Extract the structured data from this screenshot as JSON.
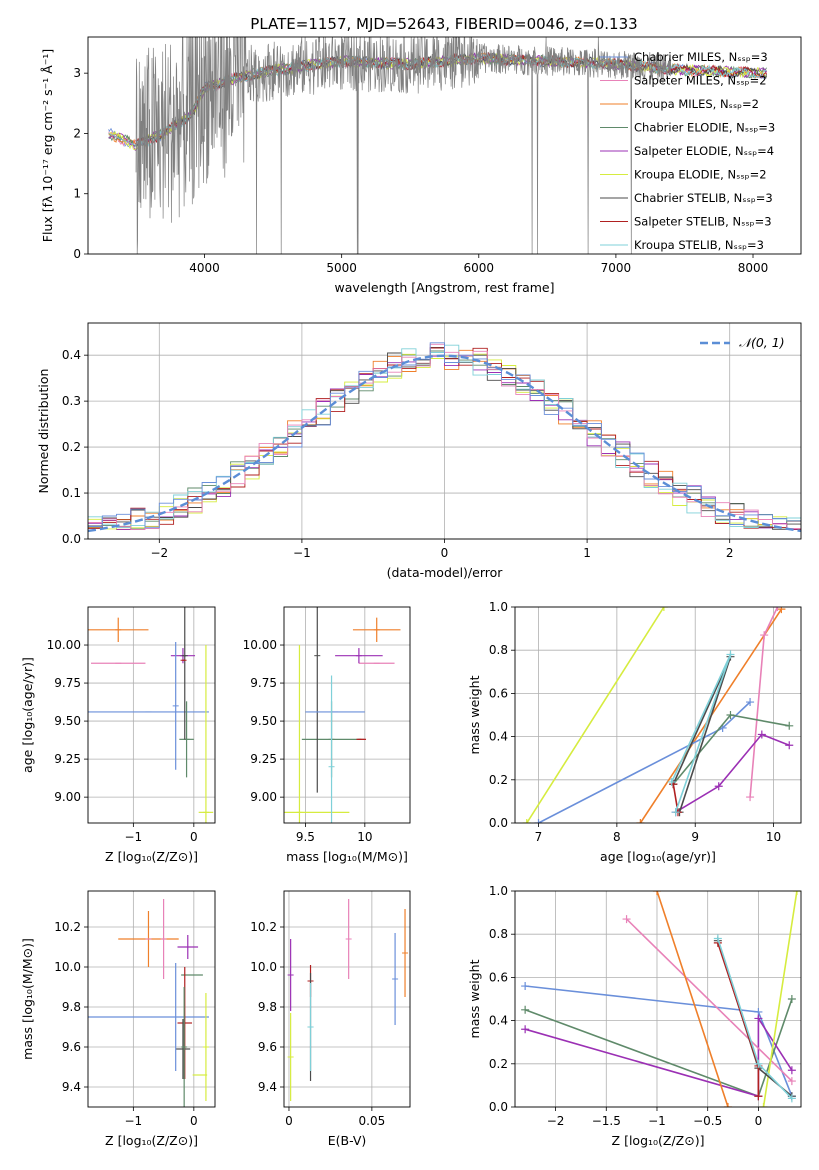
{
  "figure_title": "PLATE=1157, MJD=52643, FIBERID=0046, z=0.133",
  "colors": [
    "#ef7f2a",
    "#5f8a6a",
    "#9b30b4",
    "#d6ec3f",
    "#4b4b4b",
    "#b02020",
    "#7fd0d8",
    "#e882b8",
    "#6a8fda",
    "#8a8a8a"
  ],
  "chart_data": [
    {
      "id": "spectrum",
      "type": "line",
      "title": "PLATE=1157, MJD=52643, FIBERID=0046, z=0.133",
      "xlabel": "wavelength [Angstrom, rest frame]",
      "ylabel": "Flux [fλ 10⁻¹⁷ erg cm⁻² s⁻¹ Å⁻¹]",
      "xlim": [
        3150,
        8350
      ],
      "ylim": [
        0,
        3.6
      ],
      "xticks": [
        4000,
        5000,
        6000,
        7000,
        8000
      ],
      "yticks": [
        0,
        1,
        2,
        3
      ],
      "grid": false,
      "legend_position": "right",
      "data_color": "#808080",
      "data_range": [
        3500,
        7400
      ],
      "model_range": [
        3300,
        8100
      ],
      "continuum": {
        "x": [
          3300,
          3500,
          3700,
          3900,
          4000,
          4200,
          4500,
          5000,
          5500,
          6000,
          6500,
          7000,
          7500,
          8100
        ],
        "y": [
          2.0,
          1.8,
          2.0,
          2.3,
          2.75,
          2.9,
          3.05,
          3.2,
          3.15,
          3.25,
          3.2,
          3.15,
          3.05,
          3.0
        ]
      },
      "series": [
        {
          "name": "Chabrier MILES, Nₛₛₚ=3",
          "color": "#6a8fda"
        },
        {
          "name": "Salpeter MILES, Nₛₛₚ=2",
          "color": "#e882b8"
        },
        {
          "name": "Kroupa MILES, Nₛₛₚ=2",
          "color": "#ef7f2a"
        },
        {
          "name": "Chabrier ELODIE, Nₛₛₚ=3",
          "color": "#5f8a6a"
        },
        {
          "name": "Salpeter ELODIE, Nₛₛₚ=4",
          "color": "#9b30b4"
        },
        {
          "name": "Kroupa ELODIE, Nₛₛₚ=2",
          "color": "#d6ec3f"
        },
        {
          "name": "Chabrier STELIB, Nₛₛₚ=3",
          "color": "#4b4b4b"
        },
        {
          "name": "Salpeter STELIB, Nₛₛₚ=3",
          "color": "#b02020"
        },
        {
          "name": "Kroupa STELIB, Nₛₛₚ=3",
          "color": "#7fd0d8"
        }
      ]
    },
    {
      "id": "residuals",
      "type": "line",
      "xlabel": "(data-model)/error",
      "ylabel": "Normed distribution",
      "xlim": [
        -2.5,
        2.5
      ],
      "ylim": [
        0,
        0.47
      ],
      "xticks": [
        -2,
        -1,
        0,
        1,
        2
      ],
      "yticks": [
        0.0,
        0.1,
        0.2,
        0.3,
        0.4
      ],
      "grid": true,
      "legend_position": "top-right",
      "legend": "𝒩(0, 1)",
      "gaussian_color": "#5b8ed6",
      "bin_width": 0.1,
      "colors": [
        "#ef7f2a",
        "#5f8a6a",
        "#9b30b4",
        "#d6ec3f",
        "#4b4b4b",
        "#b02020",
        "#7fd0d8",
        "#e882b8",
        "#6a8fda"
      ]
    },
    {
      "id": "age-vs-Z",
      "type": "scatter",
      "xlabel": "Z [log₁₀(Z/Z⊙)]",
      "ylabel": "age  [log₁₀(age/yr)]",
      "xlim": [
        -1.75,
        0.35
      ],
      "ylim": [
        8.83,
        10.25
      ],
      "xticks": [
        -1,
        0
      ],
      "yticks": [
        9.0,
        9.25,
        9.5,
        9.75,
        10.0
      ],
      "grid": true,
      "points": [
        {
          "x": -1.25,
          "y": 10.1,
          "xerr": 0.5,
          "yerr": 0.08,
          "color": "#ef7f2a"
        },
        {
          "x": -1.25,
          "y": 9.88,
          "xerr": 0.45,
          "yerr": 0.0,
          "color": "#e882b8"
        },
        {
          "x": -0.75,
          "y": 9.56,
          "xerr": 1.0,
          "yerr": 0.0,
          "color": "#6a8fda"
        },
        {
          "x": -0.18,
          "y": 9.93,
          "xerr": 0.2,
          "yerr": 0.05,
          "color": "#9b30b4"
        },
        {
          "x": -0.12,
          "y": 9.38,
          "xerr": 0.12,
          "yerr": 0.25,
          "color": "#5f8a6a"
        },
        {
          "x": -0.15,
          "y": 9.93,
          "xerr": 0.02,
          "yerr": 0.55,
          "color": "#4b4b4b"
        },
        {
          "x": -0.17,
          "y": 9.9,
          "xerr": 0.02,
          "yerr": 0.0,
          "color": "#b02020"
        },
        {
          "x": 0.2,
          "y": 8.9,
          "xerr": 0.12,
          "yerr": 1.1,
          "color": "#d6ec3f"
        },
        {
          "x": -0.3,
          "y": 9.6,
          "xerr": 0.0,
          "yerr": 0.42,
          "color": "#6a8fda"
        }
      ]
    },
    {
      "id": "age-vs-mass",
      "type": "scatter",
      "xlabel": "mass [log₁₀(M/M⊙)]",
      "ylabel": "",
      "xlim": [
        9.32,
        10.38
      ],
      "ylim": [
        8.83,
        10.25
      ],
      "xticks": [
        9.5,
        10.0
      ],
      "yticks": [
        9.0,
        9.25,
        9.5,
        9.75,
        10.0
      ],
      "grid": true,
      "points": [
        {
          "x": 10.1,
          "y": 10.1,
          "xerr": 0.2,
          "yerr": 0.08,
          "color": "#ef7f2a"
        },
        {
          "x": 10.1,
          "y": 9.88,
          "xerr": 0.15,
          "yerr": 0.0,
          "color": "#e882b8"
        },
        {
          "x": 9.95,
          "y": 9.93,
          "xerr": 0.2,
          "yerr": 0.05,
          "color": "#9b30b4"
        },
        {
          "x": 9.72,
          "y": 9.38,
          "xerr": 0.25,
          "yerr": 0.25,
          "color": "#5f8a6a"
        },
        {
          "x": 9.6,
          "y": 9.93,
          "xerr": 0.0,
          "yerr": 0.9,
          "color": "#4b4b4b"
        },
        {
          "x": 9.97,
          "y": 9.38,
          "xerr": 0.04,
          "yerr": 0.0,
          "color": "#b02020"
        },
        {
          "x": 9.75,
          "y": 9.56,
          "xerr": 0.25,
          "yerr": 0.0,
          "color": "#6a8fda"
        },
        {
          "x": 9.45,
          "y": 8.9,
          "xerr": 0.42,
          "yerr": 1.1,
          "color": "#d6ec3f"
        },
        {
          "x": 9.72,
          "y": 9.2,
          "xerr": 0.0,
          "yerr": 0.6,
          "color": "#7fd0d8"
        }
      ]
    },
    {
      "id": "weight-vs-age",
      "type": "line",
      "xlabel": "age  [log₁₀(age/yr)]",
      "ylabel": "mass weight",
      "xlim": [
        6.7,
        10.35
      ],
      "ylim": [
        0,
        1.0
      ],
      "xticks": [
        7,
        8,
        9,
        10
      ],
      "yticks": [
        0.0,
        0.2,
        0.4,
        0.6,
        0.8,
        1.0
      ],
      "grid": true,
      "series": [
        {
          "color": "#d6ec3f",
          "x": [
            6.85,
            8.6
          ],
          "y": [
            0.0,
            1.0
          ]
        },
        {
          "color": "#ef7f2a",
          "x": [
            8.3,
            10.1
          ],
          "y": [
            0.0,
            0.99
          ]
        },
        {
          "color": "#6a8fda",
          "x": [
            7.0,
            9.35,
            9.7
          ],
          "y": [
            0.0,
            0.44,
            0.56
          ]
        },
        {
          "color": "#e882b8",
          "x": [
            9.7,
            9.88,
            10.05
          ],
          "y": [
            0.12,
            0.87,
            1.0
          ]
        },
        {
          "color": "#5f8a6a",
          "x": [
            8.72,
            9.45,
            10.2
          ],
          "y": [
            0.18,
            0.5,
            0.45
          ]
        },
        {
          "color": "#9b30b4",
          "x": [
            8.75,
            9.3,
            9.85,
            10.2
          ],
          "y": [
            0.05,
            0.17,
            0.41,
            0.36
          ]
        },
        {
          "color": "#4b4b4b",
          "x": [
            8.72,
            9.45,
            8.8
          ],
          "y": [
            0.18,
            0.77,
            0.05
          ]
        },
        {
          "color": "#b02020",
          "x": [
            8.72,
            8.78
          ],
          "y": [
            0.18,
            0.05
          ]
        },
        {
          "color": "#7fd0d8",
          "x": [
            8.7,
            9.45,
            8.75
          ],
          "y": [
            0.19,
            0.78,
            0.05
          ]
        }
      ]
    },
    {
      "id": "mass-vs-Z",
      "type": "scatter",
      "xlabel": "Z [log₁₀(Z/Z⊙)]",
      "ylabel": "mass [log₁₀(M/M⊙)]",
      "xlim": [
        -1.75,
        0.35
      ],
      "ylim": [
        9.3,
        10.38
      ],
      "xticks": [
        -1,
        0
      ],
      "yticks": [
        9.4,
        9.6,
        9.8,
        10.0,
        10.2
      ],
      "grid": true,
      "points": [
        {
          "x": -0.75,
          "y": 10.14,
          "xerr": 0.5,
          "yerr": 0.14,
          "color": "#ef7f2a"
        },
        {
          "x": -0.75,
          "y": 10.14,
          "xerr": 0.0,
          "yerr": 0.0,
          "color": "#e882b8"
        },
        {
          "x": -0.75,
          "y": 9.75,
          "xerr": 1.0,
          "yerr": 0.0,
          "color": "#6a8fda"
        },
        {
          "x": -0.1,
          "y": 10.1,
          "xerr": 0.17,
          "yerr": 0.06,
          "color": "#9b30b4"
        },
        {
          "x": -0.03,
          "y": 9.96,
          "xerr": 0.18,
          "yerr": 0.0,
          "color": "#5f8a6a"
        },
        {
          "x": -0.15,
          "y": 9.72,
          "xerr": 0.12,
          "yerr": 0.28,
          "color": "#b02020"
        },
        {
          "x": -0.18,
          "y": 9.59,
          "xerr": 0.12,
          "yerr": 0.15,
          "color": "#4b4b4b"
        },
        {
          "x": 0.1,
          "y": 9.46,
          "xerr": 0.12,
          "yerr": 0.0,
          "color": "#d6ec3f"
        },
        {
          "x": 0.2,
          "y": 9.6,
          "xerr": 0.0,
          "yerr": 0.27,
          "color": "#d6ec3f"
        },
        {
          "x": -0.5,
          "y": 10.14,
          "xerr": 0.0,
          "yerr": 0.2,
          "color": "#e882b8"
        },
        {
          "x": -0.3,
          "y": 9.75,
          "xerr": 0.0,
          "yerr": 0.27,
          "color": "#6a8fda"
        },
        {
          "x": -0.16,
          "y": 9.6,
          "xerr": 0.0,
          "yerr": 0.3,
          "color": "#5f8a6a"
        }
      ]
    },
    {
      "id": "mass-vs-EBV",
      "type": "scatter",
      "xlabel": "E(B-V)",
      "ylabel": "",
      "xlim": [
        -0.003,
        0.073
      ],
      "ylim": [
        9.3,
        10.38
      ],
      "xticks": [
        0.0,
        0.05
      ],
      "yticks": [
        9.4,
        9.6,
        9.8,
        10.0,
        10.2
      ],
      "grid": true,
      "points": [
        {
          "x": 0.07,
          "y": 10.07,
          "xerr": 0.0,
          "yerr": 0.22,
          "color": "#ef7f2a"
        },
        {
          "x": 0.064,
          "y": 9.94,
          "xerr": 0.0,
          "yerr": 0.23,
          "color": "#6a8fda"
        },
        {
          "x": 0.036,
          "y": 10.14,
          "xerr": 0.0,
          "yerr": 0.2,
          "color": "#e882b8"
        },
        {
          "x": 0.001,
          "y": 9.96,
          "xerr": 0.0,
          "yerr": 0.18,
          "color": "#9b30b4"
        },
        {
          "x": 0.013,
          "y": 9.93,
          "xerr": 0.0,
          "yerr": 0.08,
          "color": "#b02020"
        },
        {
          "x": 0.013,
          "y": 9.7,
          "xerr": 0.0,
          "yerr": 0.27,
          "color": "#4b4b4b"
        },
        {
          "x": 0.013,
          "y": 9.7,
          "xerr": 0.0,
          "yerr": 0.22,
          "color": "#7fd0d8"
        },
        {
          "x": 0.001,
          "y": 9.55,
          "xerr": 0.0,
          "yerr": 0.22,
          "color": "#d6ec3f"
        }
      ]
    },
    {
      "id": "weight-vs-Z",
      "type": "line",
      "xlabel": "Z [log₁₀(Z/Z⊙)]",
      "ylabel": "mass weight",
      "xlim": [
        -2.4,
        0.42
      ],
      "ylim": [
        0,
        1.0
      ],
      "xticks": [
        -2.0,
        -1.5,
        -1.0,
        -0.5,
        0.0
      ],
      "yticks": [
        0.0,
        0.2,
        0.4,
        0.6,
        0.8,
        1.0
      ],
      "grid": true,
      "series": [
        {
          "color": "#6a8fda",
          "x": [
            -2.3,
            0.0,
            0.33
          ],
          "y": [
            0.56,
            0.44,
            0.05
          ]
        },
        {
          "color": "#5f8a6a",
          "x": [
            -2.3,
            0.0,
            0.33
          ],
          "y": [
            0.45,
            0.05,
            0.5
          ]
        },
        {
          "color": "#9b30b4",
          "x": [
            -2.3,
            0.0,
            0.0,
            0.33
          ],
          "y": [
            0.36,
            0.05,
            0.41,
            0.17
          ]
        },
        {
          "color": "#e882b8",
          "x": [
            -1.3,
            0.33
          ],
          "y": [
            0.87,
            0.12
          ]
        },
        {
          "color": "#ef7f2a",
          "x": [
            -1.0,
            -0.3
          ],
          "y": [
            1.0,
            0.0
          ]
        },
        {
          "color": "#d6ec3f",
          "x": [
            0.05,
            0.38
          ],
          "y": [
            0.0,
            1.0
          ]
        },
        {
          "color": "#4b4b4b",
          "x": [
            -0.4,
            0.0,
            0.33
          ],
          "y": [
            0.77,
            0.18,
            0.05
          ]
        },
        {
          "color": "#b02020",
          "x": [
            -0.4,
            0.0,
            0.0
          ],
          "y": [
            0.76,
            0.19,
            0.05
          ]
        },
        {
          "color": "#7fd0d8",
          "x": [
            -0.4,
            0.0,
            0.33
          ],
          "y": [
            0.78,
            0.2,
            0.04
          ]
        }
      ]
    }
  ]
}
